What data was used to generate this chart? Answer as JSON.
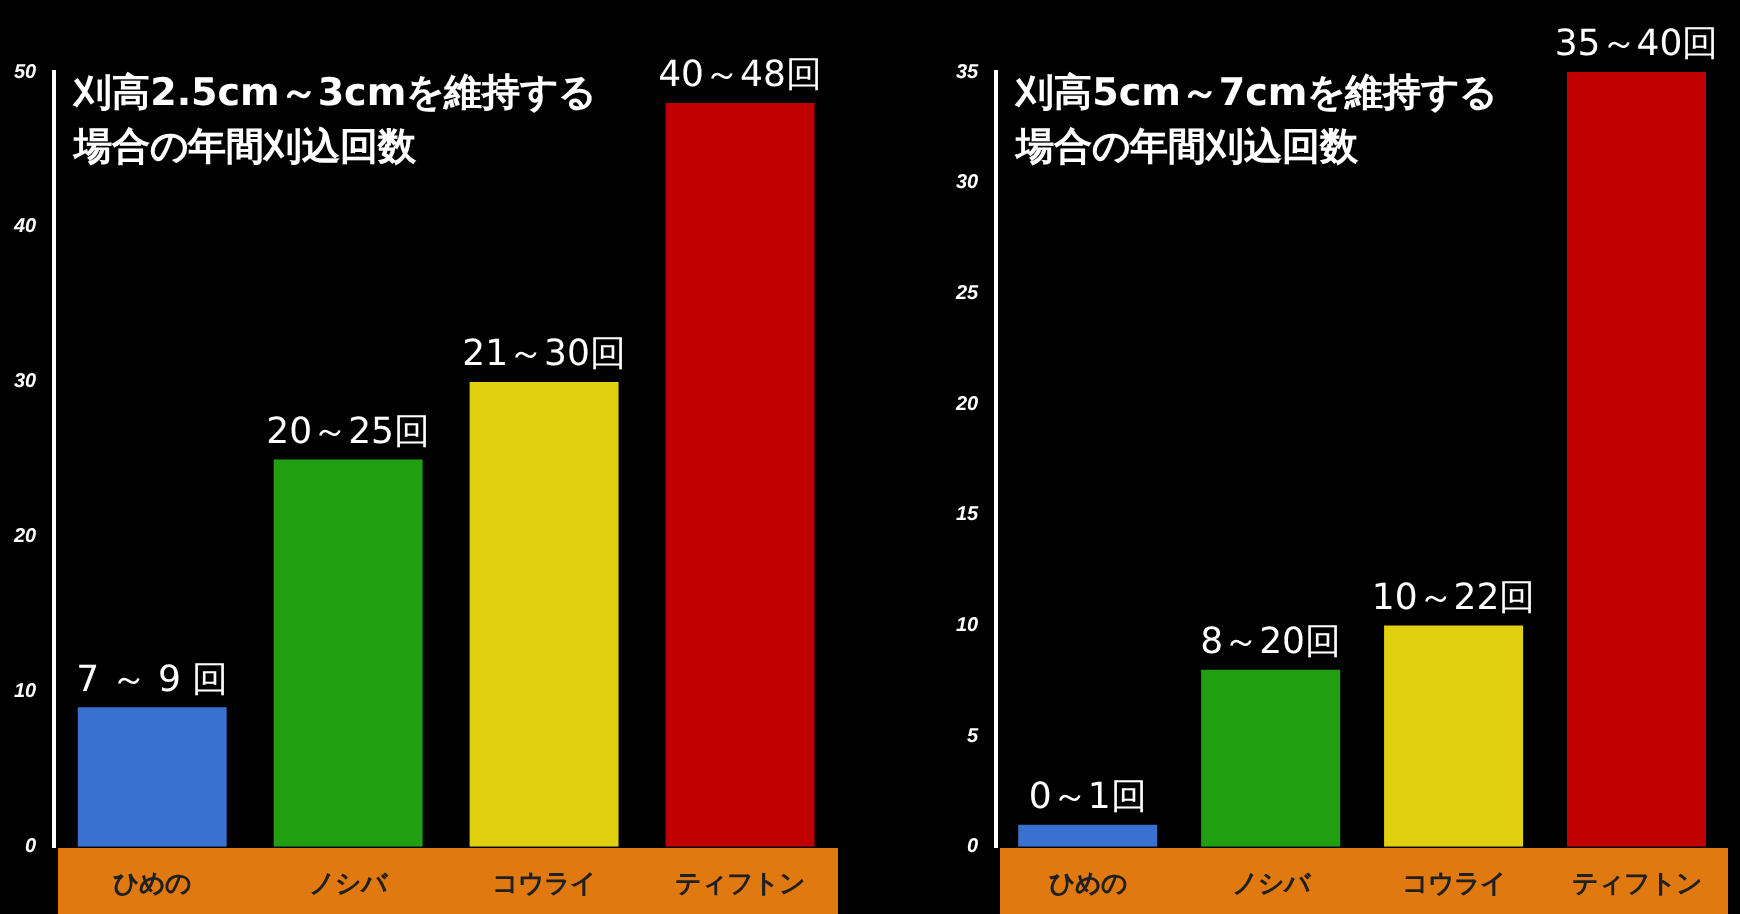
{
  "chart_data": [
    {
      "type": "bar",
      "title": "刈高2.5cm～3cmを維持する場合の年間刈込回数",
      "categories": [
        "ひめの",
        "ノシバ",
        "コウライ",
        "ティフトン"
      ],
      "values": [
        9,
        25,
        30,
        48
      ],
      "colors": [
        "#3a70d0",
        "#20a010",
        "#e0d010",
        "#c00000"
      ],
      "value_labels": [
        "7 ～ 9 回",
        "20～25回",
        "21～30回",
        "40～48回"
      ],
      "ylim": [
        0,
        50
      ],
      "yticks": [
        0,
        10,
        20,
        30,
        40,
        50
      ],
      "grid": false,
      "legend": false
    },
    {
      "type": "bar",
      "title": "刈高5cm～7cmを維持する場合の年間刈込回数",
      "categories": [
        "ひめの",
        "ノシバ",
        "コウライ",
        "ティフトン"
      ],
      "values": [
        1,
        8,
        10,
        35
      ],
      "colors": [
        "#3a70d0",
        "#20a010",
        "#e0d010",
        "#c00000"
      ],
      "value_labels": [
        "0～1回",
        "8～20回",
        "10～22回",
        "35～40回"
      ],
      "ylim": [
        0,
        35
      ],
      "yticks": [
        0,
        5,
        10,
        15,
        20,
        25,
        30,
        35
      ],
      "grid": false,
      "legend": false
    }
  ]
}
